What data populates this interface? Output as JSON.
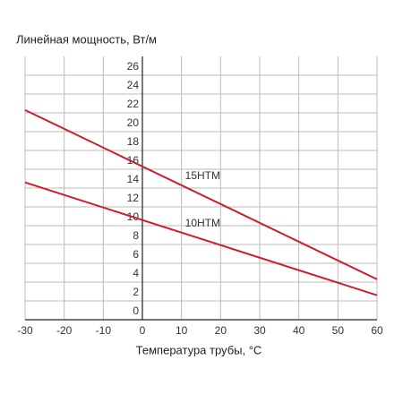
{
  "chart_data": {
    "type": "line",
    "title": "Линейная мощность, Вт/м",
    "x_label": "Температура трубы, °C",
    "x": [
      -30,
      60
    ],
    "series": [
      {
        "name": "15HTM",
        "color": "#c8202f",
        "values": [
          22.3,
          4.3
        ]
      },
      {
        "name": "10HTM",
        "color": "#c8202f",
        "values": [
          14.6,
          2.6
        ]
      }
    ],
    "xlim": [
      -30,
      60
    ],
    "xticks": [
      -30,
      -20,
      -10,
      0,
      10,
      20,
      30,
      40,
      50,
      60
    ],
    "ylim": [
      0,
      28
    ],
    "yticks": [
      0,
      2,
      4,
      6,
      8,
      10,
      12,
      14,
      16,
      18,
      20,
      22,
      24,
      26
    ],
    "grid": true
  }
}
